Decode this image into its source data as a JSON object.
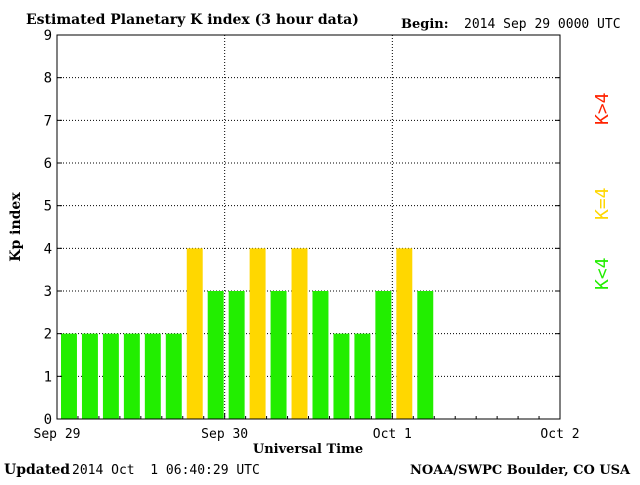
{
  "header": {
    "title": "Estimated Planetary K index (3 hour data)",
    "begin_label": "Begin:",
    "begin_value": "2014 Sep 29 0000 UTC"
  },
  "footer": {
    "updated_label": "Updated",
    "updated_value": "2014 Oct  1 06:40:29 UTC",
    "credit": "NOAA/SWPC Boulder, CO USA"
  },
  "legend": {
    "below": "K<4",
    "equal": "K=4",
    "above": "K>4"
  },
  "colors": {
    "below": "#22ee00",
    "equal": "#ffd700",
    "above": "#ff2200",
    "grid": "#000000",
    "background": "#ffffff"
  },
  "chart_data": {
    "type": "bar",
    "title": "Estimated Planetary K index (3 hour data)",
    "xlabel": "Universal Time",
    "ylabel": "Kp index",
    "ylim": [
      0,
      9
    ],
    "yticks": [
      0,
      1,
      2,
      3,
      4,
      5,
      6,
      7,
      8,
      9
    ],
    "xticks": [
      "Sep 29",
      "Sep 30",
      "Oct 1",
      "Oct 2"
    ],
    "grid": true,
    "bin_hours": 3,
    "values": [
      2,
      2,
      2,
      2,
      2,
      2,
      4,
      3,
      3,
      4,
      3,
      4,
      3,
      2,
      2,
      3,
      4,
      3
    ]
  }
}
